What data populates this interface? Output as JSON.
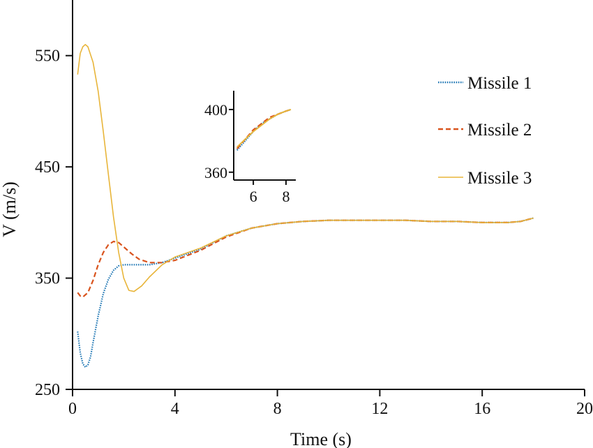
{
  "chart_data": [
    {
      "type": "line",
      "xlabel": "Time (s)",
      "ylabel": "V (m/s)",
      "xlim": [
        0,
        20
      ],
      "ylim": [
        250,
        600
      ],
      "xticks": [
        0,
        4,
        8,
        12,
        16,
        20
      ],
      "yticks": [
        250,
        350,
        450,
        550
      ],
      "legend_position": "top-right",
      "grid": false,
      "series": [
        {
          "name": "Missile 1",
          "color": "#1f77b4",
          "style": "dotted",
          "points": [
            [
              0.2,
              302
            ],
            [
              0.3,
              283
            ],
            [
              0.4,
              273
            ],
            [
              0.5,
              270
            ],
            [
              0.6,
              272
            ],
            [
              0.7,
              279
            ],
            [
              0.8,
              292
            ],
            [
              1.0,
              316
            ],
            [
              1.2,
              336
            ],
            [
              1.4,
              349
            ],
            [
              1.6,
              357
            ],
            [
              1.8,
              361
            ],
            [
              2.0,
              362
            ],
            [
              2.5,
              362
            ],
            [
              3.0,
              362
            ],
            [
              3.5,
              364
            ],
            [
              4.0,
              368
            ],
            [
              5.0,
              376
            ],
            [
              6.0,
              388
            ],
            [
              7.0,
              395
            ],
            [
              8.0,
              399
            ],
            [
              9.0,
              401
            ],
            [
              10.0,
              402
            ],
            [
              11.0,
              402
            ],
            [
              12.0,
              402
            ],
            [
              13.0,
              402
            ],
            [
              14.0,
              401
            ],
            [
              15.0,
              401
            ],
            [
              16.0,
              400
            ],
            [
              17.0,
              400
            ],
            [
              17.5,
              401
            ],
            [
              18.0,
              404
            ]
          ]
        },
        {
          "name": "Missile 2",
          "color": "#d9541e",
          "style": "dashed",
          "points": [
            [
              0.2,
              337
            ],
            [
              0.3,
              334
            ],
            [
              0.4,
              333
            ],
            [
              0.6,
              337
            ],
            [
              0.8,
              348
            ],
            [
              1.0,
              362
            ],
            [
              1.2,
              373
            ],
            [
              1.4,
              380
            ],
            [
              1.6,
              383
            ],
            [
              1.8,
              382
            ],
            [
              2.0,
              378
            ],
            [
              2.3,
              372
            ],
            [
              2.6,
              367
            ],
            [
              3.0,
              364
            ],
            [
              3.5,
              364
            ],
            [
              4.0,
              366
            ],
            [
              5.0,
              375
            ],
            [
              6.0,
              387
            ],
            [
              7.0,
              395
            ],
            [
              8.0,
              399
            ],
            [
              9.0,
              401
            ],
            [
              10.0,
              402
            ],
            [
              11.0,
              402
            ],
            [
              12.0,
              402
            ],
            [
              13.0,
              402
            ],
            [
              14.0,
              401
            ],
            [
              15.0,
              401
            ],
            [
              16.0,
              400
            ],
            [
              17.0,
              400
            ],
            [
              17.5,
              401
            ],
            [
              18.0,
              404
            ]
          ]
        },
        {
          "name": "Missile 3",
          "color": "#e8b53a",
          "style": "solid",
          "points": [
            [
              0.2,
              533
            ],
            [
              0.3,
              552
            ],
            [
              0.4,
              558
            ],
            [
              0.5,
              560
            ],
            [
              0.6,
              558
            ],
            [
              0.8,
              544
            ],
            [
              1.0,
              518
            ],
            [
              1.2,
              482
            ],
            [
              1.4,
              443
            ],
            [
              1.6,
              405
            ],
            [
              1.8,
              373
            ],
            [
              2.0,
              350
            ],
            [
              2.2,
              339
            ],
            [
              2.4,
              338
            ],
            [
              2.7,
              343
            ],
            [
              3.0,
              351
            ],
            [
              3.5,
              362
            ],
            [
              4.0,
              369
            ],
            [
              5.0,
              377
            ],
            [
              6.0,
              388
            ],
            [
              7.0,
              395
            ],
            [
              8.0,
              399
            ],
            [
              9.0,
              401
            ],
            [
              10.0,
              402
            ],
            [
              11.0,
              402
            ],
            [
              12.0,
              402
            ],
            [
              13.0,
              402
            ],
            [
              14.0,
              401
            ],
            [
              15.0,
              401
            ],
            [
              16.0,
              400
            ],
            [
              17.0,
              400
            ],
            [
              17.5,
              401
            ],
            [
              18.0,
              404
            ]
          ]
        }
      ]
    },
    {
      "type": "line",
      "role": "inset",
      "xlim": [
        4.8,
        8.6
      ],
      "ylim": [
        355,
        412
      ],
      "xticks": [
        6,
        8
      ],
      "yticks": [
        360,
        400
      ],
      "series": [
        {
          "color": "#1f77b4",
          "style": "dotted",
          "points": [
            [
              5.0,
              374
            ],
            [
              5.5,
              380
            ],
            [
              6.0,
              386
            ],
            [
              6.5,
              391
            ],
            [
              7.0,
              394
            ],
            [
              7.5,
              397
            ],
            [
              8.0,
              399
            ],
            [
              8.3,
              400
            ]
          ]
        },
        {
          "color": "#d9541e",
          "style": "dashed",
          "points": [
            [
              5.0,
              375
            ],
            [
              5.5,
              381
            ],
            [
              6.0,
              387
            ],
            [
              6.5,
              391
            ],
            [
              7.0,
              395
            ],
            [
              7.5,
              397
            ],
            [
              8.0,
              399
            ],
            [
              8.3,
              400
            ]
          ]
        },
        {
          "color": "#e8b53a",
          "style": "solid",
          "points": [
            [
              5.0,
              376
            ],
            [
              5.5,
              381
            ],
            [
              6.0,
              386
            ],
            [
              6.5,
              390
            ],
            [
              7.0,
              394
            ],
            [
              7.5,
              397
            ],
            [
              8.0,
              399
            ],
            [
              8.3,
              400
            ]
          ]
        }
      ]
    }
  ]
}
